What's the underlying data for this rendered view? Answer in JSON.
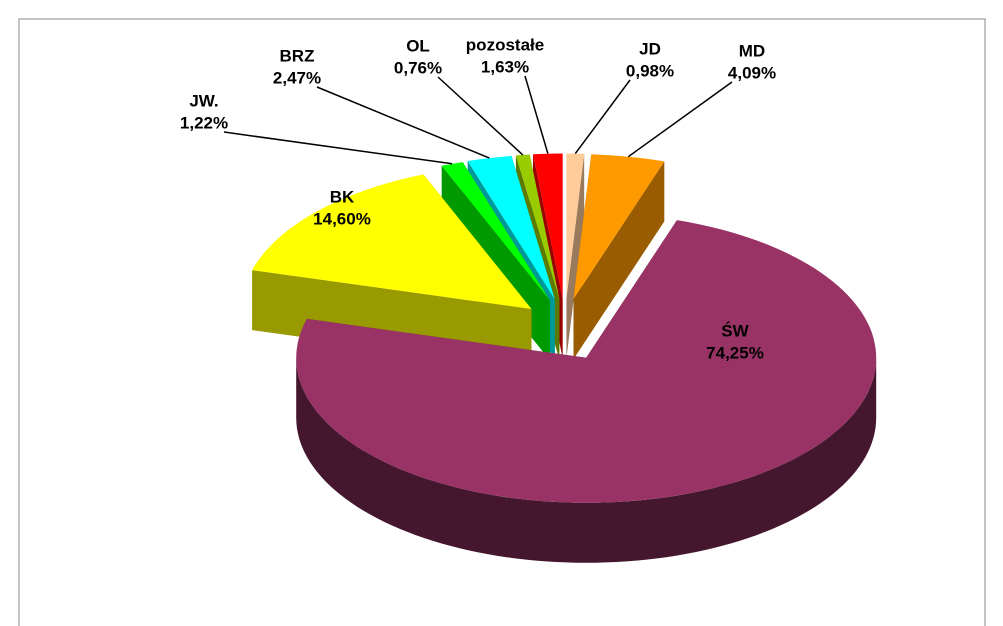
{
  "chart_data": {
    "type": "pie3d",
    "categories": [
      "JD",
      "MD",
      "ŚW",
      "BK",
      "JW.",
      "BRZ",
      "OL",
      "pozostałe"
    ],
    "values": [
      0.98,
      4.09,
      74.25,
      14.6,
      1.22,
      2.47,
      0.76,
      1.63
    ],
    "value_labels": [
      "0,98%",
      "4,09%",
      "74,25%",
      "14,60%",
      "1,22%",
      "2,47%",
      "0,76%",
      "1,63%"
    ],
    "colors": [
      "#ffcc99",
      "#ff9900",
      "#993366",
      "#ffff00",
      "#00ff00",
      "#00ffff",
      "#99cc00",
      "#ff0000"
    ]
  }
}
